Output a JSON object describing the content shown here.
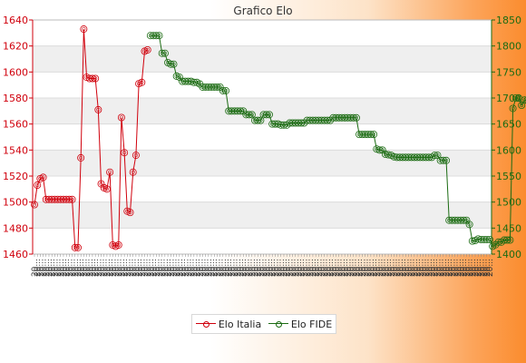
{
  "chart_data": {
    "type": "line",
    "title": "Grafico Elo",
    "left_axis": {
      "ylim": [
        1460,
        1640
      ],
      "ticks": [
        1460,
        1480,
        1500,
        1520,
        1540,
        1560,
        1580,
        1600,
        1620,
        1640
      ],
      "color": "#d0000c"
    },
    "right_axis": {
      "ylim": [
        1400,
        1850
      ],
      "ticks": [
        1400,
        1450,
        1500,
        1550,
        1600,
        1650,
        1700,
        1750,
        1800,
        1850
      ],
      "color": "#1b6b12"
    },
    "x_tick_labels": [
      "20...",
      "20...",
      "20...",
      "20...",
      "20...",
      "20...",
      "20...",
      "20...",
      "20...",
      "20...",
      "20...",
      "20...",
      "20...",
      "20...",
      "20...",
      "20...",
      "20...",
      "20...",
      "20...",
      "20...",
      "20...",
      "20...",
      "20...",
      "20...",
      "20...",
      "20...",
      "20...",
      "20...",
      "20...",
      "20...",
      "20...",
      "20...",
      "20...",
      "20...",
      "20...",
      "20...",
      "20...",
      "20...",
      "20...",
      "20...",
      "20...",
      "20...",
      "20...",
      "20...",
      "20...",
      "20...",
      "20...",
      "20...",
      "20...",
      "20...",
      "20...",
      "20...",
      "20...",
      "20...",
      "20...",
      "20...",
      "20...",
      "20...",
      "20...",
      "20...",
      "20...",
      "20...",
      "20...",
      "20...",
      "20...",
      "20...",
      "20...",
      "20...",
      "20...",
      "20...",
      "20...",
      "20...",
      "20...",
      "20...",
      "20...",
      "20...",
      "20...",
      "20...",
      "20...",
      "20...",
      "20...",
      "20...",
      "20...",
      "20...",
      "20...",
      "20...",
      "20...",
      "20...",
      "20...",
      "20...",
      "20...",
      "20...",
      "20...",
      "20...",
      "20...",
      "20...",
      "20...",
      "20...",
      "20...",
      "20...",
      "20...",
      "20...",
      "20...",
      "20...",
      "20...",
      "20...",
      "20...",
      "20...",
      "20...",
      "20...",
      "20...",
      "20...",
      "20...",
      "20...",
      "20...",
      "20...",
      "20...",
      "20...",
      "20...",
      "20...",
      "20...",
      "20...",
      "20...",
      "20...",
      "20...",
      "20...",
      "20...",
      "20...",
      "20...",
      "20...",
      "20...",
      "20...",
      "20...",
      "20...",
      "20...",
      "20...",
      "20...",
      "20...",
      "20...",
      "20...",
      "20...",
      "20...",
      "20...",
      "20...",
      "20...",
      "20...",
      "20...",
      "20...",
      "20...",
      "20...",
      "20...",
      "20...",
      "20...",
      "20...",
      "20...",
      "20...",
      "20...",
      "20..."
    ],
    "series": [
      {
        "name": "Elo Italia",
        "axis": "left",
        "color": "#d0000c",
        "start_index": 0,
        "values": [
          1498,
          1513,
          1518,
          1519,
          1502,
          1502,
          1502,
          1502,
          1502,
          1502,
          1502,
          1502,
          1502,
          1502,
          1465,
          1465,
          1534,
          1633,
          1596,
          1595,
          1595,
          1595,
          1571,
          1514,
          1511,
          1510,
          1523,
          1467,
          1466,
          1467,
          1565,
          1538,
          1493,
          1492,
          1523,
          1536,
          1591,
          1592,
          1616,
          1617
        ]
      },
      {
        "name": "Elo FIDE",
        "axis": "right",
        "color": "#1b6b12",
        "start_index": 40,
        "values": [
          1820,
          1820,
          1820,
          1820,
          1786,
          1786,
          1768,
          1765,
          1765,
          1742,
          1740,
          1732,
          1732,
          1732,
          1732,
          1730,
          1730,
          1727,
          1721,
          1721,
          1721,
          1721,
          1721,
          1721,
          1721,
          1714,
          1714,
          1675,
          1675,
          1675,
          1675,
          1675,
          1675,
          1668,
          1668,
          1668,
          1657,
          1657,
          1657,
          1668,
          1668,
          1668,
          1650,
          1650,
          1650,
          1648,
          1648,
          1648,
          1652,
          1652,
          1652,
          1652,
          1652,
          1652,
          1657,
          1657,
          1657,
          1657,
          1657,
          1657,
          1657,
          1657,
          1657,
          1662,
          1662,
          1662,
          1662,
          1662,
          1662,
          1662,
          1662,
          1662,
          1630,
          1630,
          1630,
          1630,
          1630,
          1630,
          1602,
          1600,
          1600,
          1592,
          1591,
          1590,
          1587,
          1586,
          1586,
          1586,
          1586,
          1586,
          1586,
          1586,
          1586,
          1586,
          1586,
          1586,
          1586,
          1586,
          1590,
          1590,
          1580,
          1580,
          1580,
          1465,
          1465,
          1465,
          1465,
          1465,
          1465,
          1465,
          1457,
          1425,
          1426,
          1429,
          1428,
          1428,
          1428,
          1428,
          1415,
          1418,
          1423,
          1423,
          1427,
          1427,
          1427,
          1680,
          1700,
          1700,
          1686,
          1696,
          1696,
          1691,
          1700,
          1670,
          1676,
          1676,
          1676,
          1676,
          1676,
          1676,
          1676,
          1676,
          1676,
          1676,
          1676,
          1676,
          1676,
          1676,
          1676,
          1676,
          1676,
          1676,
          1676,
          1676,
          1676,
          1676,
          1676,
          1676,
          1676,
          1676,
          1676,
          1676,
          1676,
          1676,
          1676,
          1676,
          1676,
          1676,
          1676,
          1676,
          1676,
          1676,
          1676,
          1676,
          1676,
          1676,
          1676,
          1676,
          1676,
          1676,
          1676,
          1676,
          1676
        ]
      }
    ],
    "grid": true,
    "legend_position": "bottom"
  }
}
